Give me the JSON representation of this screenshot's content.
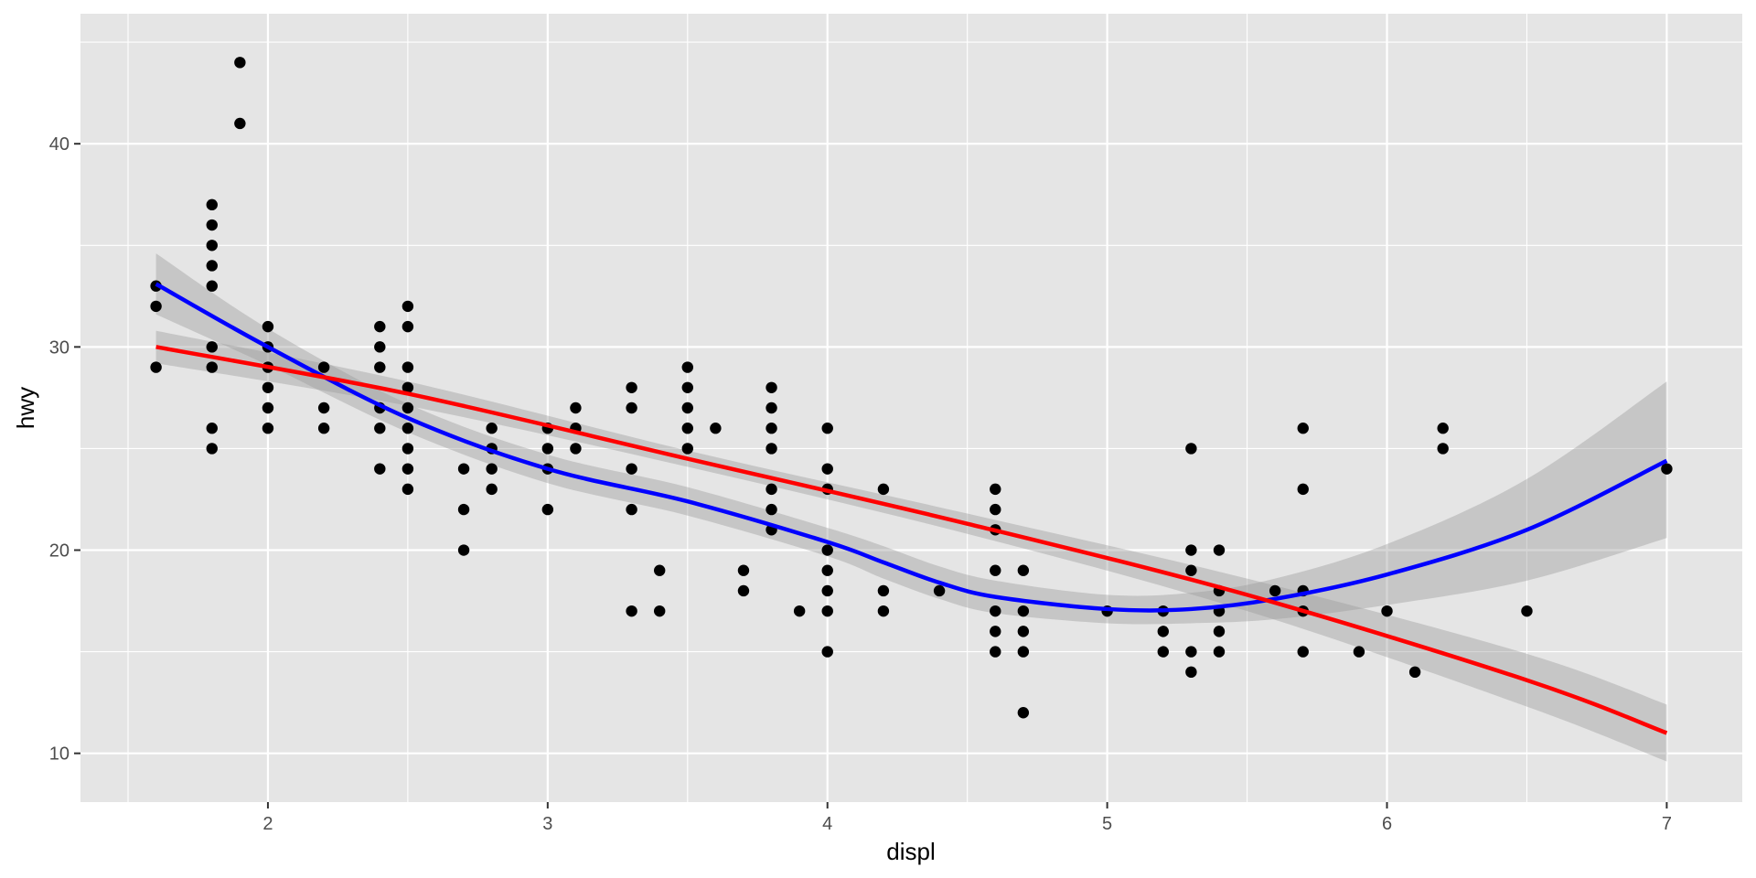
{
  "chart_data": {
    "type": "scatter",
    "title": "",
    "xlabel": "displ",
    "ylabel": "hwy",
    "xlim": [
      1.33,
      7.27
    ],
    "ylim": [
      7.6,
      46.4
    ],
    "x_ticks": [
      2,
      3,
      4,
      5,
      6,
      7
    ],
    "y_ticks": [
      10,
      20,
      30,
      40
    ],
    "x_tick_labels": [
      "2",
      "3",
      "4",
      "5",
      "6",
      "7"
    ],
    "y_tick_labels": [
      "10",
      "20",
      "30",
      "40"
    ],
    "grid": true,
    "legend": "none",
    "colors": {
      "panel_background": "#e5e5e5",
      "grid": "#ffffff",
      "points": "#000000",
      "smooth_line": "#0000ff",
      "linear_fit": "#ff0000",
      "confidence_band": "#999999"
    },
    "points": [
      [
        1.6,
        33
      ],
      [
        1.6,
        32
      ],
      [
        1.6,
        29
      ],
      [
        1.8,
        37
      ],
      [
        1.8,
        36
      ],
      [
        1.8,
        35
      ],
      [
        1.8,
        34
      ],
      [
        1.8,
        33
      ],
      [
        1.8,
        30
      ],
      [
        1.8,
        29
      ],
      [
        1.8,
        26
      ],
      [
        1.8,
        25
      ],
      [
        1.9,
        44
      ],
      [
        1.9,
        41
      ],
      [
        2.0,
        31
      ],
      [
        2.0,
        30
      ],
      [
        2.0,
        29
      ],
      [
        2.0,
        28
      ],
      [
        2.0,
        27
      ],
      [
        2.0,
        26
      ],
      [
        2.2,
        29
      ],
      [
        2.2,
        27
      ],
      [
        2.2,
        26
      ],
      [
        2.4,
        31
      ],
      [
        2.4,
        30
      ],
      [
        2.4,
        29
      ],
      [
        2.4,
        27
      ],
      [
        2.4,
        26
      ],
      [
        2.4,
        24
      ],
      [
        2.5,
        32
      ],
      [
        2.5,
        31
      ],
      [
        2.5,
        29
      ],
      [
        2.5,
        28
      ],
      [
        2.5,
        27
      ],
      [
        2.5,
        26
      ],
      [
        2.5,
        25
      ],
      [
        2.5,
        24
      ],
      [
        2.5,
        23
      ],
      [
        2.7,
        24
      ],
      [
        2.7,
        22
      ],
      [
        2.7,
        20
      ],
      [
        2.8,
        26
      ],
      [
        2.8,
        25
      ],
      [
        2.8,
        24
      ],
      [
        2.8,
        23
      ],
      [
        3.0,
        26
      ],
      [
        3.0,
        25
      ],
      [
        3.0,
        24
      ],
      [
        3.0,
        22
      ],
      [
        3.1,
        27
      ],
      [
        3.1,
        26
      ],
      [
        3.1,
        25
      ],
      [
        3.3,
        28
      ],
      [
        3.3,
        27
      ],
      [
        3.3,
        24
      ],
      [
        3.3,
        22
      ],
      [
        3.3,
        17
      ],
      [
        3.4,
        19
      ],
      [
        3.4,
        17
      ],
      [
        3.5,
        29
      ],
      [
        3.5,
        28
      ],
      [
        3.5,
        27
      ],
      [
        3.5,
        26
      ],
      [
        3.5,
        25
      ],
      [
        3.6,
        26
      ],
      [
        3.7,
        19
      ],
      [
        3.7,
        18
      ],
      [
        3.8,
        28
      ],
      [
        3.8,
        27
      ],
      [
        3.8,
        26
      ],
      [
        3.8,
        25
      ],
      [
        3.8,
        23
      ],
      [
        3.8,
        22
      ],
      [
        3.8,
        21
      ],
      [
        3.9,
        17
      ],
      [
        4.0,
        26
      ],
      [
        4.0,
        24
      ],
      [
        4.0,
        23
      ],
      [
        4.0,
        20
      ],
      [
        4.0,
        19
      ],
      [
        4.0,
        18
      ],
      [
        4.0,
        17
      ],
      [
        4.0,
        15
      ],
      [
        4.2,
        23
      ],
      [
        4.2,
        18
      ],
      [
        4.2,
        17
      ],
      [
        4.4,
        18
      ],
      [
        4.6,
        23
      ],
      [
        4.6,
        22
      ],
      [
        4.6,
        21
      ],
      [
        4.6,
        19
      ],
      [
        4.6,
        17
      ],
      [
        4.6,
        16
      ],
      [
        4.6,
        15
      ],
      [
        4.7,
        19
      ],
      [
        4.7,
        17
      ],
      [
        4.7,
        16
      ],
      [
        4.7,
        15
      ],
      [
        4.7,
        12
      ],
      [
        5.0,
        17
      ],
      [
        5.2,
        17
      ],
      [
        5.2,
        16
      ],
      [
        5.2,
        15
      ],
      [
        5.3,
        25
      ],
      [
        5.3,
        20
      ],
      [
        5.3,
        19
      ],
      [
        5.3,
        15
      ],
      [
        5.3,
        14
      ],
      [
        5.4,
        20
      ],
      [
        5.4,
        18
      ],
      [
        5.4,
        17
      ],
      [
        5.4,
        16
      ],
      [
        5.4,
        15
      ],
      [
        5.6,
        18
      ],
      [
        5.7,
        26
      ],
      [
        5.7,
        23
      ],
      [
        5.7,
        18
      ],
      [
        5.7,
        17
      ],
      [
        5.7,
        15
      ],
      [
        5.9,
        15
      ],
      [
        6.0,
        17
      ],
      [
        6.1,
        14
      ],
      [
        6.2,
        26
      ],
      [
        6.2,
        25
      ],
      [
        6.5,
        17
      ],
      [
        7.0,
        24
      ]
    ],
    "smooth": {
      "x": [
        1.6,
        2.0,
        2.5,
        3.0,
        3.5,
        4.0,
        4.2,
        4.4,
        4.6,
        5.0,
        5.3,
        5.6,
        6.0,
        6.5,
        7.0
      ],
      "y": [
        33.1,
        30.0,
        26.5,
        24.0,
        22.4,
        20.4,
        19.4,
        18.4,
        17.7,
        17.1,
        17.1,
        17.6,
        18.8,
        21.0,
        24.4
      ],
      "lower": [
        31.6,
        29.1,
        25.8,
        23.3,
        21.7,
        19.7,
        18.6,
        17.6,
        16.9,
        16.4,
        16.4,
        16.6,
        17.3,
        18.5,
        20.6
      ],
      "upper": [
        34.6,
        30.9,
        27.2,
        24.7,
        23.1,
        21.1,
        20.2,
        19.2,
        18.5,
        17.8,
        17.9,
        18.6,
        20.3,
        23.5,
        28.3
      ]
    },
    "linear_fit": {
      "x": [
        1.6,
        2.5,
        3.5,
        4.5,
        5.5,
        6.5,
        7.0
      ],
      "y": [
        30.0,
        27.7,
        24.5,
        21.3,
        17.8,
        13.6,
        11.0
      ],
      "lower": [
        29.2,
        27.1,
        24.1,
        20.8,
        17.0,
        12.3,
        9.6
      ],
      "upper": [
        30.8,
        28.3,
        24.9,
        21.8,
        18.6,
        14.9,
        12.4
      ]
    }
  }
}
